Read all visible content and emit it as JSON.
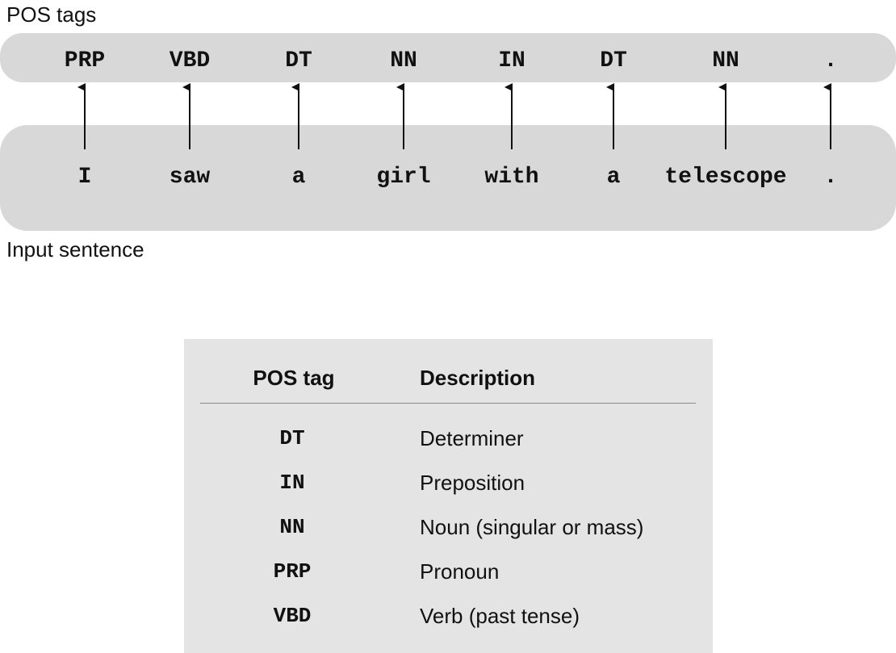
{
  "labels": {
    "tags_label": "POS tags",
    "input_label": "Input sentence"
  },
  "tags": [
    "PRP",
    "VBD",
    "DT",
    "NN",
    "IN",
    "DT",
    "NN",
    "."
  ],
  "words": [
    "I",
    "saw",
    "a",
    "girl",
    "with",
    "a",
    "telescope",
    "."
  ],
  "table": {
    "header_tag": "POS tag",
    "header_desc": "Description",
    "rows": [
      {
        "tag": "DT",
        "desc": "Determiner"
      },
      {
        "tag": "IN",
        "desc": "Preposition"
      },
      {
        "tag": "NN",
        "desc": "Noun (singular or mass)"
      },
      {
        "tag": "PRP",
        "desc": "Pronoun"
      },
      {
        "tag": "VBD",
        "desc": "Verb (past tense)"
      }
    ]
  },
  "colors": {
    "band": "#d8d8d8",
    "table_bg": "#e4e4e4",
    "text": "#111111"
  }
}
